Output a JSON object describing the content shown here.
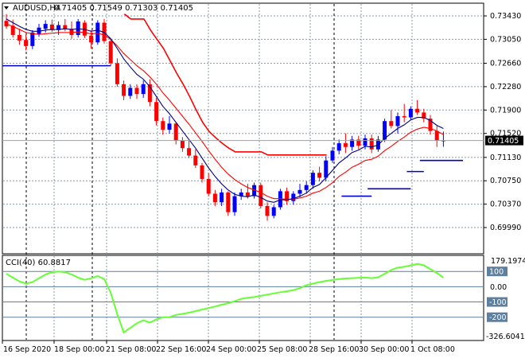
{
  "header": {
    "symbol": "AUDUSD,H4",
    "ohlc": "0.71405 0.71549 0.71303 0.71405"
  },
  "price_axis": {
    "ticks": [
      "0.73430",
      "0.73050",
      "0.72660",
      "0.72280",
      "0.71900",
      "0.71520",
      "0.71130",
      "0.70750",
      "0.70370",
      "0.69990"
    ],
    "tick_values": [
      0.7343,
      0.7305,
      0.7266,
      0.7228,
      0.719,
      0.7152,
      0.7113,
      0.7075,
      0.7037,
      0.6999
    ],
    "current_price": "0.71405",
    "current_value": 0.71405
  },
  "indicator": {
    "label": "CCI(40) 60.8817",
    "max_label": "179.1974",
    "min_label": "-326.6041",
    "levels": [
      {
        "label": "100",
        "value": 100
      },
      {
        "label": "0.00",
        "value": 0
      },
      {
        "label": "-100",
        "value": -100
      },
      {
        "label": "-200",
        "value": -200
      }
    ],
    "range": [
      -326.6041,
      179.1974
    ]
  },
  "time_axis": {
    "labels": [
      "16 Sep 2020",
      "18 Sep 00:00",
      "21 Sep 08:00",
      "22 Sep 16:00",
      "24 Sep 00:00",
      "25 Sep 08:00",
      "28 Sep 16:00",
      "30 Sep 00:00",
      "1 Oct 08:00"
    ]
  },
  "colors": {
    "bull": "#0000ff",
    "bear": "#ff0000",
    "fast_ma": "#000080",
    "slow_ma": "#ff0000",
    "stop_line_bear": "#ff0000",
    "stop_line_bull": "#0000cc",
    "cci_line": "#66ff33",
    "grid": "#8a9aaa",
    "level_line": "#5f7f9f"
  },
  "chart_data": {
    "type": "candlestick",
    "title": "AUDUSD,H4",
    "ylim": [
      0.6999,
      0.7343
    ],
    "candles": [
      [
        0.7335,
        0.7346,
        0.7322,
        0.7326
      ],
      [
        0.7327,
        0.7337,
        0.7308,
        0.7312
      ],
      [
        0.7312,
        0.7322,
        0.7296,
        0.7303
      ],
      [
        0.7304,
        0.7313,
        0.7287,
        0.7294
      ],
      [
        0.7294,
        0.732,
        0.7289,
        0.7316
      ],
      [
        0.7314,
        0.733,
        0.7309,
        0.7324
      ],
      [
        0.7322,
        0.7336,
        0.7316,
        0.733
      ],
      [
        0.7329,
        0.7337,
        0.7317,
        0.732
      ],
      [
        0.732,
        0.7334,
        0.7312,
        0.7328
      ],
      [
        0.7328,
        0.7338,
        0.7318,
        0.7321
      ],
      [
        0.7322,
        0.7334,
        0.7306,
        0.7312
      ],
      [
        0.7312,
        0.7338,
        0.7308,
        0.7334
      ],
      [
        0.7332,
        0.7336,
        0.7307,
        0.7311
      ],
      [
        0.7311,
        0.732,
        0.729,
        0.73
      ],
      [
        0.73,
        0.7336,
        0.7296,
        0.7332
      ],
      [
        0.7332,
        0.7338,
        0.7298,
        0.7302
      ],
      [
        0.7302,
        0.7305,
        0.7262,
        0.7266
      ],
      [
        0.7266,
        0.7274,
        0.7228,
        0.7232
      ],
      [
        0.7232,
        0.7238,
        0.7206,
        0.7213
      ],
      [
        0.7213,
        0.7232,
        0.7208,
        0.7226
      ],
      [
        0.7226,
        0.7232,
        0.7208,
        0.7216
      ],
      [
        0.7216,
        0.7238,
        0.721,
        0.7232
      ],
      [
        0.7232,
        0.724,
        0.7196,
        0.7203
      ],
      [
        0.7203,
        0.721,
        0.7165,
        0.7172
      ],
      [
        0.7172,
        0.7178,
        0.715,
        0.7158
      ],
      [
        0.7158,
        0.718,
        0.7152,
        0.7168
      ],
      [
        0.7168,
        0.7171,
        0.7134,
        0.714
      ],
      [
        0.714,
        0.7146,
        0.7122,
        0.7128
      ],
      [
        0.7128,
        0.714,
        0.7112,
        0.7116
      ],
      [
        0.7116,
        0.7126,
        0.7096,
        0.71
      ],
      [
        0.71,
        0.7104,
        0.7072,
        0.7078
      ],
      [
        0.7078,
        0.7088,
        0.705,
        0.7054
      ],
      [
        0.7054,
        0.706,
        0.7034,
        0.704
      ],
      [
        0.704,
        0.7062,
        0.7034,
        0.7056
      ],
      [
        0.7056,
        0.7058,
        0.7018,
        0.7024
      ],
      [
        0.7024,
        0.7056,
        0.7018,
        0.705
      ],
      [
        0.705,
        0.7062,
        0.7044,
        0.7056
      ],
      [
        0.7056,
        0.707,
        0.7046,
        0.705
      ],
      [
        0.705,
        0.7072,
        0.7046,
        0.7068
      ],
      [
        0.7068,
        0.7072,
        0.703,
        0.7034
      ],
      [
        0.7034,
        0.704,
        0.701,
        0.7018
      ],
      [
        0.7018,
        0.7036,
        0.7014,
        0.7032
      ],
      [
        0.7032,
        0.7062,
        0.7028,
        0.7058
      ],
      [
        0.7058,
        0.7064,
        0.7036,
        0.7042
      ],
      [
        0.7042,
        0.7058,
        0.7036,
        0.7054
      ],
      [
        0.7054,
        0.707,
        0.7048,
        0.706
      ],
      [
        0.706,
        0.7074,
        0.7054,
        0.7068
      ],
      [
        0.7068,
        0.7092,
        0.7062,
        0.7088
      ],
      [
        0.7088,
        0.7098,
        0.7074,
        0.708
      ],
      [
        0.708,
        0.7115,
        0.7074,
        0.7108
      ],
      [
        0.7108,
        0.713,
        0.7104,
        0.7124
      ],
      [
        0.7124,
        0.7142,
        0.7118,
        0.7136
      ],
      [
        0.7136,
        0.7152,
        0.712,
        0.713
      ],
      [
        0.713,
        0.7148,
        0.7124,
        0.7142
      ],
      [
        0.7142,
        0.7148,
        0.7126,
        0.7132
      ],
      [
        0.7132,
        0.715,
        0.7126,
        0.7144
      ],
      [
        0.7144,
        0.715,
        0.712,
        0.7126
      ],
      [
        0.7126,
        0.7148,
        0.7122,
        0.7142
      ],
      [
        0.7142,
        0.7176,
        0.7138,
        0.7172
      ],
      [
        0.7172,
        0.719,
        0.716,
        0.7164
      ],
      [
        0.7164,
        0.7186,
        0.7152,
        0.718
      ],
      [
        0.718,
        0.72,
        0.717,
        0.7178
      ],
      [
        0.7178,
        0.7196,
        0.7174,
        0.7192
      ],
      [
        0.7192,
        0.7206,
        0.7182,
        0.7186
      ],
      [
        0.7186,
        0.7192,
        0.717,
        0.7176
      ],
      [
        0.7176,
        0.7182,
        0.715,
        0.7156
      ],
      [
        0.7156,
        0.7164,
        0.713,
        0.714
      ],
      [
        0.71405,
        0.71549,
        0.71303,
        0.71405
      ]
    ],
    "fast_ma": [
      0.7338,
      0.7332,
      0.7326,
      0.7321,
      0.7318,
      0.7318,
      0.732,
      0.7321,
      0.7321,
      0.7322,
      0.7321,
      0.7322,
      0.7321,
      0.7318,
      0.732,
      0.7316,
      0.7306,
      0.729,
      0.7273,
      0.726,
      0.7248,
      0.724,
      0.7228,
      0.7212,
      0.7196,
      0.7184,
      0.717,
      0.7156,
      0.7142,
      0.7128,
      0.7112,
      0.7096,
      0.7082,
      0.707,
      0.706,
      0.7053,
      0.705,
      0.7049,
      0.7052,
      0.7048,
      0.7042,
      0.704,
      0.7044,
      0.7044,
      0.7046,
      0.705,
      0.7055,
      0.7064,
      0.7069,
      0.708,
      0.7092,
      0.7104,
      0.7112,
      0.7121,
      0.7125,
      0.7131,
      0.713,
      0.7133,
      0.7144,
      0.7152,
      0.716,
      0.7166,
      0.7174,
      0.7178,
      0.7178,
      0.7173,
      0.7165,
      0.716
    ],
    "slow_ma": [
      0.733,
      0.7326,
      0.7321,
      0.7316,
      0.7314,
      0.7313,
      0.7314,
      0.7315,
      0.7316,
      0.7316,
      0.7316,
      0.7317,
      0.7316,
      0.7314,
      0.7315,
      0.7312,
      0.7305,
      0.7294,
      0.7282,
      0.7272,
      0.7262,
      0.7254,
      0.7244,
      0.7232,
      0.7218,
      0.7206,
      0.7193,
      0.718,
      0.7167,
      0.7153,
      0.7139,
      0.7124,
      0.711,
      0.7097,
      0.7086,
      0.7077,
      0.707,
      0.7064,
      0.706,
      0.7056,
      0.705,
      0.7046,
      0.7046,
      0.7045,
      0.7045,
      0.7047,
      0.705,
      0.7055,
      0.7058,
      0.7064,
      0.7072,
      0.7082,
      0.7089,
      0.7097,
      0.7102,
      0.7108,
      0.711,
      0.7115,
      0.7124,
      0.7131,
      0.7139,
      0.7146,
      0.7154,
      0.7159,
      0.7162,
      0.716,
      0.7156,
      0.715
    ],
    "stop_line_bear": [
      null,
      null,
      null,
      null,
      null,
      null,
      null,
      null,
      null,
      null,
      null,
      null,
      null,
      null,
      null,
      null,
      null,
      0.7346,
      0.7338,
      0.7338,
      0.7338,
      0.732,
      0.7305,
      0.729,
      0.727,
      0.725,
      0.7232,
      0.7212,
      0.719,
      0.717,
      0.7155,
      0.7145,
      0.7136,
      0.7128,
      0.7122,
      0.7122,
      0.7122,
      0.7122,
      0.7122,
      0.7117,
      0.7117,
      0.7117,
      0.7117,
      0.7117,
      0.7117,
      0.7117,
      0.7117,
      0.7117,
      0.7117,
      null,
      null,
      null,
      null,
      null,
      null,
      null,
      null,
      null,
      null,
      null,
      null,
      null,
      null,
      null,
      null,
      null,
      null,
      null
    ],
    "stop_line_bull_segments": [
      {
        "from": 0,
        "to": 16,
        "value": 0.7262
      },
      {
        "from": 52,
        "to": 56,
        "value": 0.705
      },
      {
        "from": 56,
        "to": 62,
        "value": 0.7062
      },
      {
        "from": 62,
        "to": 64,
        "value": 0.709
      },
      {
        "from": 64,
        "to": 70,
        "value": 0.7108
      }
    ],
    "cci": [
      85,
      60,
      35,
      20,
      30,
      55,
      80,
      95,
      100,
      95,
      80,
      60,
      45,
      55,
      70,
      50,
      -40,
      -180,
      -300,
      -270,
      -240,
      -220,
      -235,
      -215,
      -200,
      -200,
      -185,
      -178,
      -170,
      -160,
      -150,
      -140,
      -130,
      -118,
      -108,
      -95,
      -80,
      -72,
      -68,
      -60,
      -52,
      -44,
      -36,
      -30,
      -22,
      -10,
      10,
      20,
      30,
      38,
      44,
      50,
      54,
      56,
      58,
      60,
      56,
      62,
      85,
      110,
      125,
      130,
      140,
      150,
      140,
      115,
      90,
      60
    ]
  }
}
